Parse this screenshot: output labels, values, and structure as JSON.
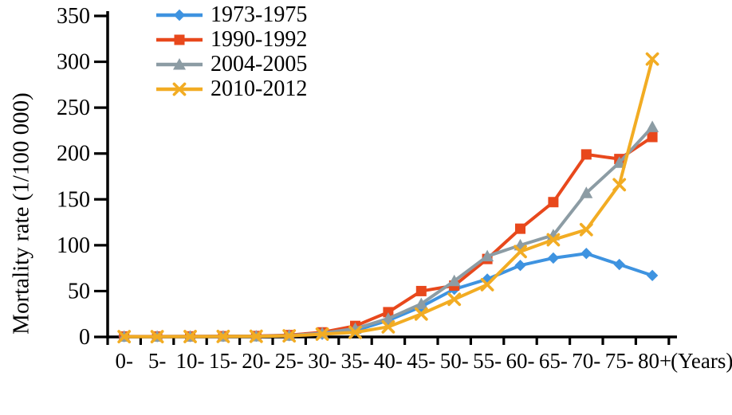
{
  "chart_data": {
    "type": "line",
    "title": "",
    "ylabel": "Mortality rate (1/100 000)",
    "xlabel_suffix": "(Years)",
    "ylim": [
      0,
      350
    ],
    "yticks": [
      0,
      50,
      100,
      150,
      200,
      250,
      300,
      350
    ],
    "grid": false,
    "legend_position": "top-left",
    "categories": [
      "0-",
      "5-",
      "10-",
      "15-",
      "20-",
      "25-",
      "30-",
      "35-",
      "40-",
      "45-",
      "50-",
      "55-",
      "60-",
      "65-",
      "70-",
      "75-",
      "80+"
    ],
    "series": [
      {
        "name": "1973-1975",
        "color": "#3E93E0",
        "marker": "diamond",
        "values": [
          0.4,
          0.4,
          0.5,
          0.6,
          0.8,
          1.5,
          3,
          7,
          18,
          33,
          52,
          63,
          78,
          86,
          91,
          79,
          67
        ]
      },
      {
        "name": "1990-1992",
        "color": "#E8481C",
        "marker": "square",
        "values": [
          0.5,
          0.5,
          0.6,
          0.8,
          1,
          2,
          5,
          12,
          27,
          50,
          56,
          85,
          118,
          147,
          199,
          194,
          218
        ]
      },
      {
        "name": "2004-2005",
        "color": "#8C9CA4",
        "marker": "triangle",
        "values": [
          0.4,
          0.4,
          0.5,
          0.6,
          0.8,
          1.5,
          4,
          9,
          20,
          36,
          61,
          88,
          100,
          111,
          157,
          190,
          229
        ]
      },
      {
        "name": "2010-2012",
        "color": "#F2AC23",
        "marker": "x",
        "values": [
          0.3,
          0.3,
          0.4,
          0.5,
          0.7,
          1.2,
          3,
          5,
          11,
          25,
          41,
          57,
          93,
          106,
          117,
          166,
          303
        ]
      }
    ],
    "axis_color": "#000000"
  }
}
